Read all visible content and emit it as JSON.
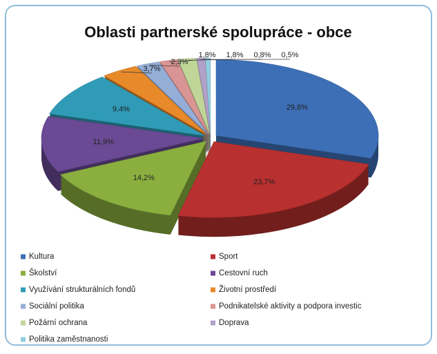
{
  "chart_data": {
    "type": "pie",
    "title": "Oblasti partnerské spolupráce - obce",
    "categories": [
      "Kultura",
      "Sport",
      "Školství",
      "Cestovní ruch",
      "Využívání strukturálních fondů",
      "Životní prostředí",
      "Sociální politika",
      "Podnikatelské aktivity a podpora investic",
      "Požární ochrana",
      "Doprava",
      "Politika zaměstnanosti"
    ],
    "values": [
      29.8,
      23.7,
      14.2,
      11.9,
      9.4,
      3.7,
      2.3,
      1.8,
      1.8,
      0.8,
      0.5
    ],
    "value_labels": [
      "29,8%",
      "23,7%",
      "14,2%",
      "11,9%",
      "9,4%",
      "3,7%",
      "2,3%",
      "1,8%",
      "1,8%",
      "0,8%",
      "0,5%"
    ],
    "colors": [
      "#3d6fb6",
      "#b8302f",
      "#8aaf3f",
      "#6a4a94",
      "#2f9bb7",
      "#e8892a",
      "#94aed7",
      "#d99593",
      "#c0d699",
      "#b1a0c8",
      "#92cde0"
    ],
    "legend": "bottom"
  }
}
